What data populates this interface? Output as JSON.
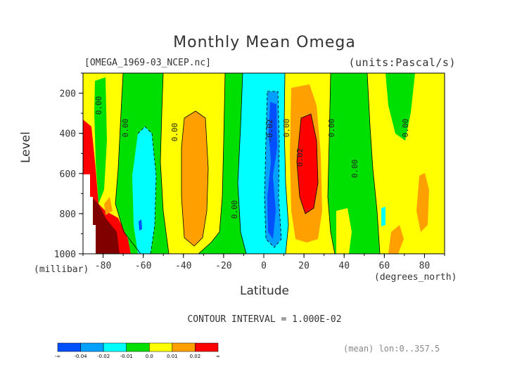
{
  "chart_data": {
    "type": "heatmap",
    "title": "Monthly Mean Omega",
    "file_label": "[OMEGA_1969-03_NCEP.nc]",
    "units_label": "(units:Pascal/s)",
    "xlabel": "Latitude",
    "x_unit_label": "(degrees_north)",
    "ylabel": "Level",
    "y_unit_label": "(millibar)",
    "xlim": [
      -90,
      90
    ],
    "ylim": [
      1000,
      100
    ],
    "x_ticks": [
      -80,
      -60,
      -40,
      -20,
      0,
      20,
      40,
      60,
      80
    ],
    "x_tick_labels": [
      "-80",
      "-60",
      "-40",
      "-20",
      "0",
      "20",
      "40",
      "60",
      "80"
    ],
    "y_ticks": [
      200,
      400,
      600,
      800,
      1000
    ],
    "y_tick_labels": [
      "200",
      "400",
      "600",
      "800",
      "1000"
    ],
    "contour_interval_text": "CONTOUR INTERVAL = 1.000E-02",
    "contour_labels": [
      "0.00",
      "0.00",
      "0.00",
      "0.00",
      "0.00",
      "0.00",
      "0.00",
      "-0.02",
      "0.02",
      "0.00"
    ],
    "colorbar": {
      "colors": [
        "#0050ff",
        "#00a0ff",
        "#00ffff",
        "#00e000",
        "#ffff00",
        "#ffa000",
        "#ff0000"
      ],
      "labels": [
        "-∞",
        "-0.04",
        "-0.02",
        "-0.01",
        "0.0",
        "0.01",
        "0.02",
        "∞"
      ]
    },
    "footer": "(mean) lon:0..357.5",
    "bands": [
      {
        "lat": [
          -90,
          -85
        ],
        "value": "0.02+"
      },
      {
        "lat": [
          -85,
          -78
        ],
        "value": "0.0 to 0.01"
      },
      {
        "lat": [
          -78,
          -70
        ],
        "value": "0.0 to 0.01 / 0.02+ near surface"
      },
      {
        "lat": [
          -70,
          -52
        ],
        "value": "-0.02 to -0.01 core"
      },
      {
        "lat": [
          -52,
          -28
        ],
        "value": "0.01 to 0.02 core"
      },
      {
        "lat": [
          -28,
          -12
        ],
        "value": "-0.01 to 0.0"
      },
      {
        "lat": [
          -10,
          12
        ],
        "value": "-0.04 to -0.02 core"
      },
      {
        "lat": [
          12,
          30
        ],
        "value": "0.02+ core"
      },
      {
        "lat": [
          30,
          55
        ],
        "value": "-0.01 to 0.0"
      },
      {
        "lat": [
          55,
          90
        ],
        "value": "0.0 to 0.01"
      }
    ]
  },
  "colors": {
    "neg2": "#0050ff",
    "neg1": "#00a0ff",
    "cyan": "#00ffff",
    "green": "#00e000",
    "yellow": "#ffff00",
    "orange": "#ffa000",
    "red": "#ff0000",
    "darkred": "#800000"
  }
}
